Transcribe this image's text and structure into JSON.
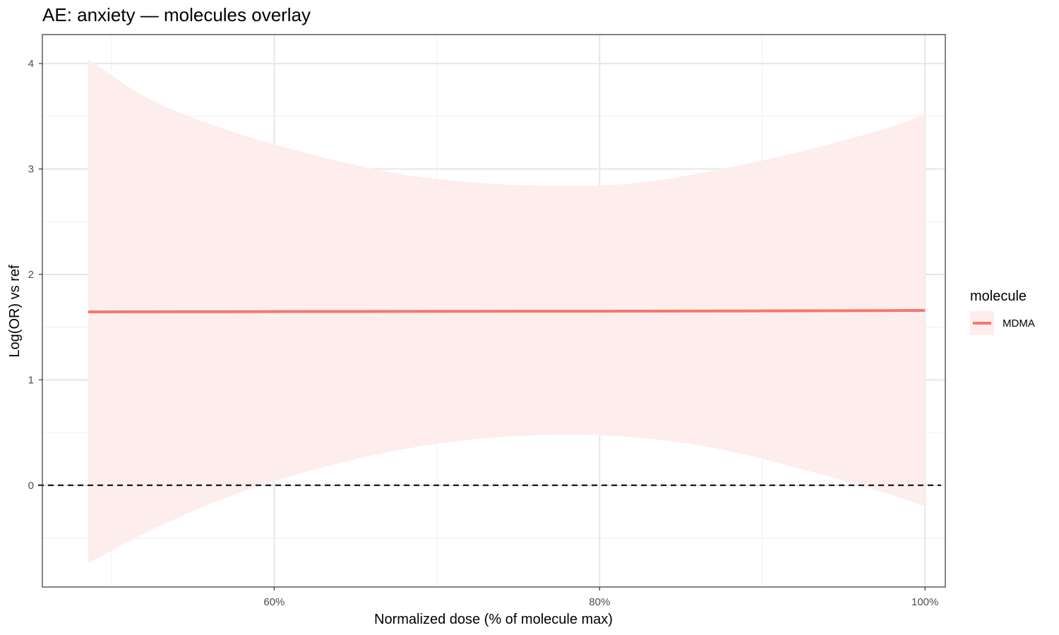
{
  "chart_data": {
    "type": "line",
    "title": "AE: anxiety — molecules overlay",
    "xlabel": "Normalized dose (% of molecule max)",
    "ylabel": "Log(OR) vs ref",
    "xlim": [
      0.4575,
      1.0125
    ],
    "ylim": [
      -0.965,
      4.275
    ],
    "x_ticks": [
      0.6,
      0.8,
      1.0
    ],
    "x_tick_labels": [
      "60%",
      "80%",
      "100%"
    ],
    "x_minor_ticks": [
      0.5,
      0.7,
      0.9
    ],
    "y_ticks": [
      0,
      1,
      2,
      3,
      4
    ],
    "y_tick_labels": [
      "0",
      "1",
      "2",
      "3",
      "4"
    ],
    "y_minor_ticks": [
      -0.5,
      0.5,
      1.5,
      2.5,
      3.5
    ],
    "grid": true,
    "reference_line": {
      "y": 0,
      "style": "dashed",
      "color": "#000000"
    },
    "legend": {
      "title": "molecule",
      "position": "right"
    },
    "series": [
      {
        "name": "MDMA",
        "color": "#F8766D",
        "ribbon_color": "#FDEDEC",
        "x": [
          0.4857,
          0.525,
          0.575,
          0.625,
          0.675,
          0.725,
          0.775,
          0.825,
          0.875,
          0.925,
          0.975,
          1.0
        ],
        "y": [
          1.645,
          1.646,
          1.647,
          1.648,
          1.649,
          1.65,
          1.651,
          1.652,
          1.653,
          1.655,
          1.657,
          1.658
        ],
        "lower": [
          -0.74,
          -0.42,
          -0.09,
          0.15,
          0.33,
          0.44,
          0.48,
          0.45,
          0.34,
          0.15,
          -0.07,
          -0.2
        ],
        "upper": [
          4.04,
          3.65,
          3.35,
          3.13,
          2.96,
          2.87,
          2.84,
          2.87,
          3.0,
          3.17,
          3.38,
          3.52
        ]
      }
    ]
  }
}
